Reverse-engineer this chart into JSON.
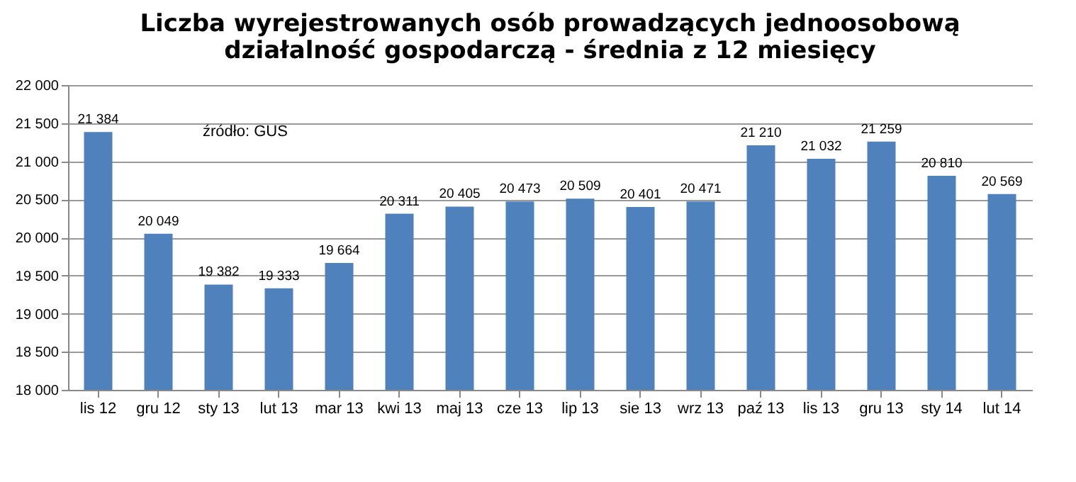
{
  "chart_data": {
    "type": "bar",
    "title": "Liczba wyrejestrowanych osób prowadzących jednoosobową\ndziałalność gospodarczą - średnia z 12 miesięcy",
    "categories": [
      "lis 12",
      "gru 12",
      "sty 13",
      "lut 13",
      "mar 13",
      "kwi 13",
      "maj 13",
      "cze 13",
      "lip 13",
      "sie 13",
      "wrz 13",
      "paź 13",
      "lis 13",
      "gru 13",
      "sty 14",
      "lut 14"
    ],
    "values": [
      21384,
      20049,
      19382,
      19333,
      19664,
      20311,
      20405,
      20473,
      20509,
      20401,
      20471,
      21210,
      21032,
      21259,
      20810,
      20569
    ],
    "value_labels": [
      "21 384",
      "20 049",
      "19 382",
      "19 333",
      "19 664",
      "20 311",
      "20 405",
      "20 473",
      "20 509",
      "20 401",
      "20 471",
      "21 210",
      "21 032",
      "21 259",
      "20 810",
      "20 569"
    ],
    "color": "#4f81bd",
    "ylim": [
      18000,
      22000
    ],
    "yticks": [
      {
        "value": 18000,
        "label": "18 000"
      },
      {
        "value": 18500,
        "label": "18 500"
      },
      {
        "value": 19000,
        "label": "19 000"
      },
      {
        "value": 19500,
        "label": "19 500"
      },
      {
        "value": 20000,
        "label": "20 000"
      },
      {
        "value": 20500,
        "label": "20 500"
      },
      {
        "value": 21000,
        "label": "21 000"
      },
      {
        "value": 21500,
        "label": "21 500"
      },
      {
        "value": 22000,
        "label": "22 000"
      }
    ],
    "grid": "y",
    "annotations": [
      "źródło: GUS"
    ]
  }
}
